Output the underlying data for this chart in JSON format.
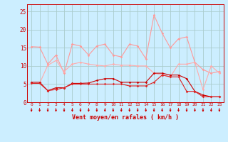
{
  "xlabel": "Vent moyen/en rafales ( km/h )",
  "x": [
    0,
    1,
    2,
    3,
    4,
    5,
    6,
    7,
    8,
    9,
    10,
    11,
    12,
    13,
    14,
    15,
    16,
    17,
    18,
    19,
    20,
    21,
    22,
    23
  ],
  "series": [
    {
      "name": "rafales_light",
      "color": "#ff9999",
      "lw": 0.8,
      "marker": "D",
      "ms": 1.8,
      "values": [
        15.3,
        15.2,
        10.5,
        13.0,
        8.0,
        16.0,
        15.5,
        13.0,
        15.5,
        16.0,
        13.0,
        12.5,
        16.0,
        15.5,
        12.0,
        24.0,
        19.0,
        15.0,
        17.5,
        18.0,
        11.0,
        9.0,
        8.0,
        8.5
      ]
    },
    {
      "name": "moyen_light",
      "color": "#ffaaaa",
      "lw": 0.8,
      "marker": "D",
      "ms": 1.8,
      "values": [
        5.2,
        5.2,
        10.2,
        11.5,
        8.5,
        10.5,
        11.0,
        10.5,
        10.2,
        10.0,
        10.5,
        10.2,
        10.2,
        10.0,
        10.0,
        8.0,
        7.5,
        7.0,
        10.5,
        10.5,
        11.0,
        3.5,
        10.0,
        8.0
      ]
    },
    {
      "name": "rafales_dark",
      "color": "#cc0000",
      "lw": 0.8,
      "marker": "D",
      "ms": 1.8,
      "values": [
        5.5,
        5.5,
        3.2,
        4.0,
        4.0,
        5.2,
        5.2,
        5.3,
        6.0,
        6.5,
        6.5,
        5.5,
        5.5,
        5.5,
        5.5,
        8.0,
        8.0,
        7.5,
        7.5,
        6.5,
        3.0,
        2.0,
        1.5,
        1.5
      ]
    },
    {
      "name": "moyen_dark",
      "color": "#dd2222",
      "lw": 0.8,
      "marker": "D",
      "ms": 1.8,
      "values": [
        5.2,
        5.2,
        3.2,
        3.5,
        4.0,
        5.0,
        5.0,
        5.0,
        5.0,
        5.0,
        5.0,
        5.0,
        4.5,
        4.5,
        4.5,
        5.5,
        7.5,
        7.0,
        7.0,
        3.0,
        3.0,
        1.5,
        1.5,
        1.5
      ]
    }
  ],
  "ylim": [
    0,
    27
  ],
  "yticks": [
    0,
    5,
    10,
    15,
    20,
    25
  ],
  "bg_color": "#cceeff",
  "grid_color": "#aacccc",
  "arrow_color": "#cc0000",
  "tick_label_color": "#cc0000",
  "axis_label_color": "#cc0000",
  "spine_color": "#cc0000",
  "fig_width": 3.2,
  "fig_height": 2.0,
  "dpi": 100
}
